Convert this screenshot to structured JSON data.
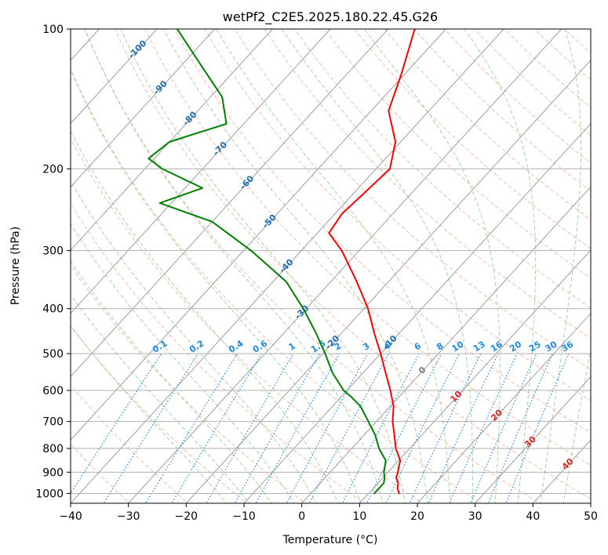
{
  "chart_data": {
    "type": "skew-t",
    "title": "wetPf2_C2E5.2025.180.22.45.G26",
    "xlabel": "Temperature (°C)",
    "ylabel": "Pressure (hPa)",
    "xlim": [
      -40,
      50
    ],
    "ylim": [
      1050,
      100
    ],
    "y_scale": "log",
    "grid": true,
    "x_ticks": [
      "−40",
      "−30",
      "−20",
      "−10",
      "0",
      "10",
      "20",
      "30",
      "40",
      "50"
    ],
    "y_ticks": [
      "100",
      "200",
      "300",
      "400",
      "500",
      "600",
      "700",
      "800",
      "900",
      "1000"
    ],
    "colors": {
      "temperature": "#ff0000",
      "dewpoint": "#008000",
      "dry_adiabat": "#f4a58a",
      "moist_adiabat": "#8fc98f",
      "mixing_ratio": "#1e88e5",
      "isotherm": "#9e9e9e",
      "isotherm_negative_label": "#1f6fb4",
      "isotherm_positive_label": "#d62728",
      "isotherm_zero_label": "#808080",
      "grid": "#b0b0b0"
    },
    "isotherm_labels_negative": [
      "-100",
      "-90",
      "-80",
      "-70",
      "-60",
      "-50",
      "-40",
      "-30",
      "-20",
      "-10"
    ],
    "isotherm_labels_positive": [
      "0",
      "10",
      "20",
      "30",
      "40"
    ],
    "mixing_ratio_labels": [
      "0.1",
      "0.2",
      "0.4",
      "0.6",
      "1",
      "1.5",
      "2",
      "3",
      "4",
      "6",
      "8",
      "10",
      "13",
      "16",
      "20",
      "25",
      "30",
      "36"
    ],
    "series": [
      {
        "name": "Temperature",
        "pressure": [
          1000,
          975,
          950,
          925,
          900,
          850,
          800,
          750,
          700,
          650,
          600,
          550,
          500,
          450,
          400,
          350,
          300,
          275,
          250,
          225,
          200,
          175,
          150,
          125,
          100
        ],
        "values": [
          15.3,
          14.2,
          13.5,
          12.3,
          11.7,
          10.3,
          7.6,
          5.3,
          2.8,
          0.6,
          -2.5,
          -6.1,
          -10.0,
          -14.5,
          -19.3,
          -25.5,
          -33.0,
          -38.0,
          -38.8,
          -38.2,
          -37.6,
          -40.9,
          -47.0,
          -50.6,
          -55.4
        ]
      },
      {
        "name": "Dewpoint",
        "pressure": [
          1000,
          975,
          950,
          925,
          900,
          850,
          800,
          750,
          700,
          650,
          620,
          600,
          550,
          500,
          450,
          400,
          350,
          300,
          260,
          237,
          220,
          200,
          190,
          175,
          160,
          140,
          120,
          100
        ],
        "values": [
          11.0,
          11.0,
          11.0,
          10.3,
          9.3,
          7.8,
          4.7,
          2.0,
          -1.4,
          -5.1,
          -8.2,
          -10.6,
          -15.3,
          -19.6,
          -24.6,
          -30.5,
          -37.7,
          -48.7,
          -60.0,
          -72.0,
          -67.0,
          -77.0,
          -81.0,
          -80.0,
          -73.0,
          -78.0,
          -86.5,
          -96.5
        ]
      }
    ]
  }
}
